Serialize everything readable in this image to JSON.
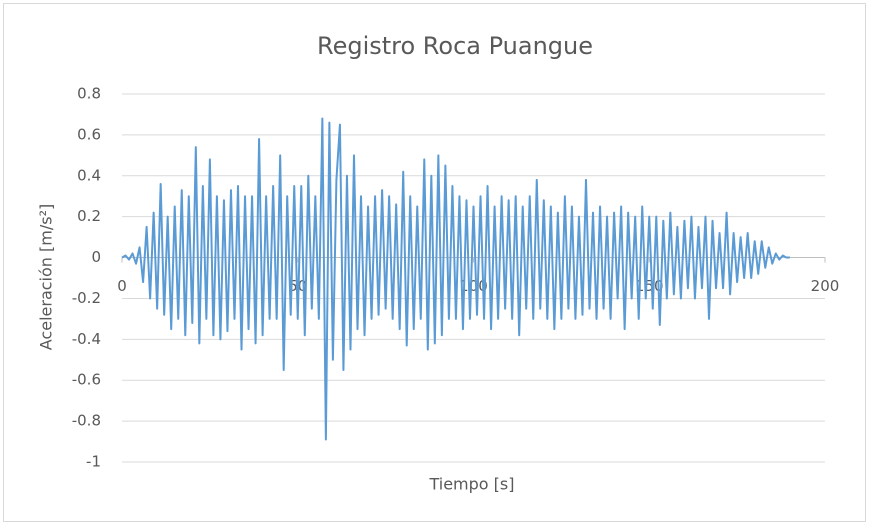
{
  "chart_data": {
    "type": "line",
    "title": "Registro Roca Puangue",
    "xlabel": "Tiempo [s]",
    "ylabel": "Aceleración [m/s²]",
    "color": "#5b9bd5",
    "grid": true,
    "xlim": [
      0,
      200
    ],
    "xticks": [
      0,
      50,
      100,
      150,
      200
    ],
    "ylim": [
      -1,
      0.8
    ],
    "yticks": [
      -1,
      -0.8,
      -0.6,
      -0.4,
      -0.2,
      0,
      0.2,
      0.4,
      0.6,
      0.8
    ],
    "x": [
      0,
      1,
      2,
      3,
      4,
      5,
      6,
      7,
      8,
      9,
      10,
      11,
      12,
      13,
      14,
      15,
      16,
      17,
      18,
      19,
      20,
      21,
      22,
      23,
      24,
      25,
      26,
      27,
      28,
      29,
      30,
      31,
      32,
      33,
      34,
      35,
      36,
      37,
      38,
      39,
      40,
      41,
      42,
      43,
      44,
      45,
      46,
      47,
      48,
      49,
      50,
      51,
      52,
      53,
      54,
      55,
      56,
      57,
      58,
      59,
      60,
      61,
      62,
      63,
      64,
      65,
      66,
      67,
      68,
      69,
      70,
      71,
      72,
      73,
      74,
      75,
      76,
      77,
      78,
      79,
      80,
      81,
      82,
      83,
      84,
      85,
      86,
      87,
      88,
      89,
      90,
      91,
      92,
      93,
      94,
      95,
      96,
      97,
      98,
      99,
      100,
      101,
      102,
      103,
      104,
      105,
      106,
      107,
      108,
      109,
      110,
      111,
      112,
      113,
      114,
      115,
      116,
      117,
      118,
      119,
      120,
      121,
      122,
      123,
      124,
      125,
      126,
      127,
      128,
      129,
      130,
      131,
      132,
      133,
      134,
      135,
      136,
      137,
      138,
      139,
      140,
      141,
      142,
      143,
      144,
      145,
      146,
      147,
      148,
      149,
      150,
      151,
      152,
      153,
      154,
      155,
      156,
      157,
      158,
      159,
      160,
      161,
      162,
      163,
      164,
      165,
      166,
      167,
      168,
      169,
      170,
      171,
      172,
      173,
      174,
      175,
      176,
      177,
      178,
      179,
      180,
      181,
      182,
      183,
      184,
      185,
      186,
      187,
      188,
      189,
      190
    ],
    "values": [
      0,
      0.01,
      -0.01,
      0.02,
      -0.03,
      0.05,
      -0.12,
      0.15,
      -0.2,
      0.22,
      -0.25,
      0.36,
      -0.28,
      0.2,
      -0.35,
      0.25,
      -0.3,
      0.33,
      -0.38,
      0.3,
      -0.32,
      0.54,
      -0.42,
      0.35,
      -0.3,
      0.48,
      -0.38,
      0.3,
      -0.4,
      0.28,
      -0.36,
      0.33,
      -0.3,
      0.35,
      -0.45,
      0.3,
      -0.35,
      0.3,
      -0.42,
      0.58,
      -0.38,
      0.3,
      -0.3,
      0.35,
      -0.3,
      0.5,
      -0.55,
      0.3,
      -0.28,
      0.35,
      -0.3,
      0.35,
      -0.38,
      0.4,
      -0.25,
      0.3,
      -0.3,
      0.68,
      -0.89,
      0.66,
      -0.5,
      0.38,
      0.65,
      -0.55,
      0.4,
      -0.45,
      0.5,
      -0.35,
      0.3,
      -0.38,
      0.25,
      -0.3,
      0.3,
      -0.28,
      0.33,
      -0.25,
      0.3,
      -0.3,
      0.26,
      -0.35,
      0.42,
      -0.43,
      0.3,
      -0.35,
      0.25,
      -0.3,
      0.48,
      -0.45,
      0.4,
      -0.42,
      0.5,
      -0.38,
      0.45,
      -0.3,
      0.35,
      -0.3,
      0.3,
      -0.35,
      0.28,
      -0.3,
      0.25,
      -0.28,
      0.3,
      -0.3,
      0.35,
      -0.35,
      0.25,
      -0.3,
      0.3,
      -0.25,
      0.28,
      -0.3,
      0.3,
      -0.38,
      0.25,
      -0.25,
      0.3,
      -0.3,
      0.38,
      -0.25,
      0.28,
      -0.3,
      0.25,
      -0.35,
      0.22,
      -0.3,
      0.3,
      -0.25,
      0.25,
      -0.3,
      0.2,
      -0.28,
      0.38,
      -0.25,
      0.22,
      -0.3,
      0.25,
      -0.25,
      0.2,
      -0.3,
      0.22,
      -0.2,
      0.25,
      -0.35,
      0.22,
      -0.2,
      0.2,
      -0.3,
      0.25,
      -0.2,
      0.2,
      -0.25,
      0.2,
      -0.33,
      0.18,
      -0.2,
      0.22,
      -0.18,
      0.15,
      -0.2,
      0.18,
      -0.15,
      0.2,
      -0.2,
      0.15,
      -0.15,
      0.2,
      -0.3,
      0.18,
      -0.15,
      0.12,
      -0.15,
      0.22,
      -0.18,
      0.12,
      -0.12,
      0.1,
      -0.1,
      0.12,
      -0.1,
      0.08,
      -0.08,
      0.08,
      -0.05,
      0.05,
      -0.03,
      0.02,
      -0.01,
      0.01,
      0,
      0
    ]
  }
}
